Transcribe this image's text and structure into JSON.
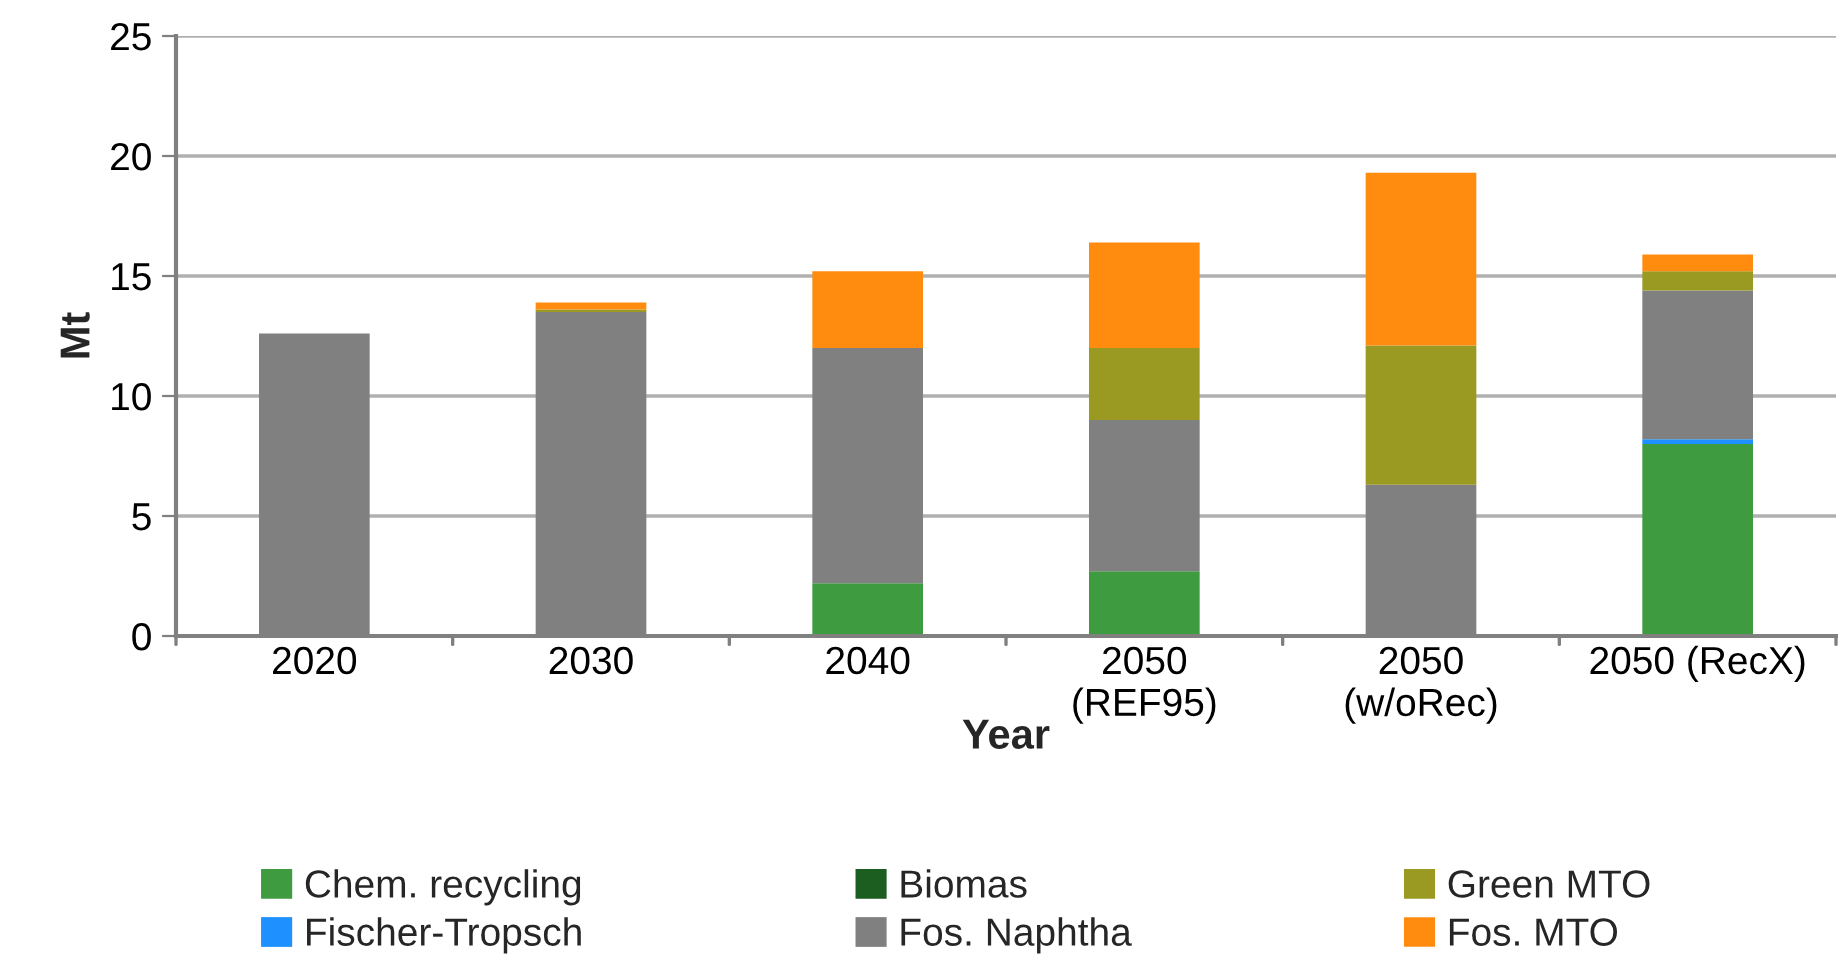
{
  "chart_data": {
    "type": "bar",
    "stacked": true,
    "xlabel": "Year",
    "ylabel": "Mt",
    "categories": [
      "2020",
      "2030",
      "2040",
      "2050\n(REF95)",
      "2050\n(w/oRec)",
      "2050 (RecX)"
    ],
    "series": [
      {
        "name": "Chem. recycling",
        "color": "#3f9b3f",
        "values": [
          0,
          0,
          2.2,
          2.7,
          0,
          8.0
        ]
      },
      {
        "name": "Fischer-Tropsch",
        "color": "#1e90ff",
        "values": [
          0,
          0,
          0,
          0,
          0,
          0.2
        ]
      },
      {
        "name": "Biomas",
        "color": "#1b5e20",
        "values": [
          0,
          0,
          0,
          0,
          0,
          0
        ]
      },
      {
        "name": "Fos. Naphtha",
        "color": "#808080",
        "values": [
          12.6,
          13.5,
          9.8,
          6.3,
          6.3,
          6.2
        ]
      },
      {
        "name": "Green MTO",
        "color": "#9a9a22",
        "values": [
          0,
          0.1,
          0,
          3.0,
          5.8,
          0.8
        ]
      },
      {
        "name": "Fos. MTO",
        "color": "#ff8c0f",
        "values": [
          0,
          0.3,
          3.2,
          4.4,
          7.2,
          0.7
        ]
      }
    ],
    "ylim": [
      0,
      25
    ],
    "yticks": [
      0,
      5,
      10,
      15,
      20,
      25
    ],
    "grid": "y",
    "legend": "bottom"
  }
}
